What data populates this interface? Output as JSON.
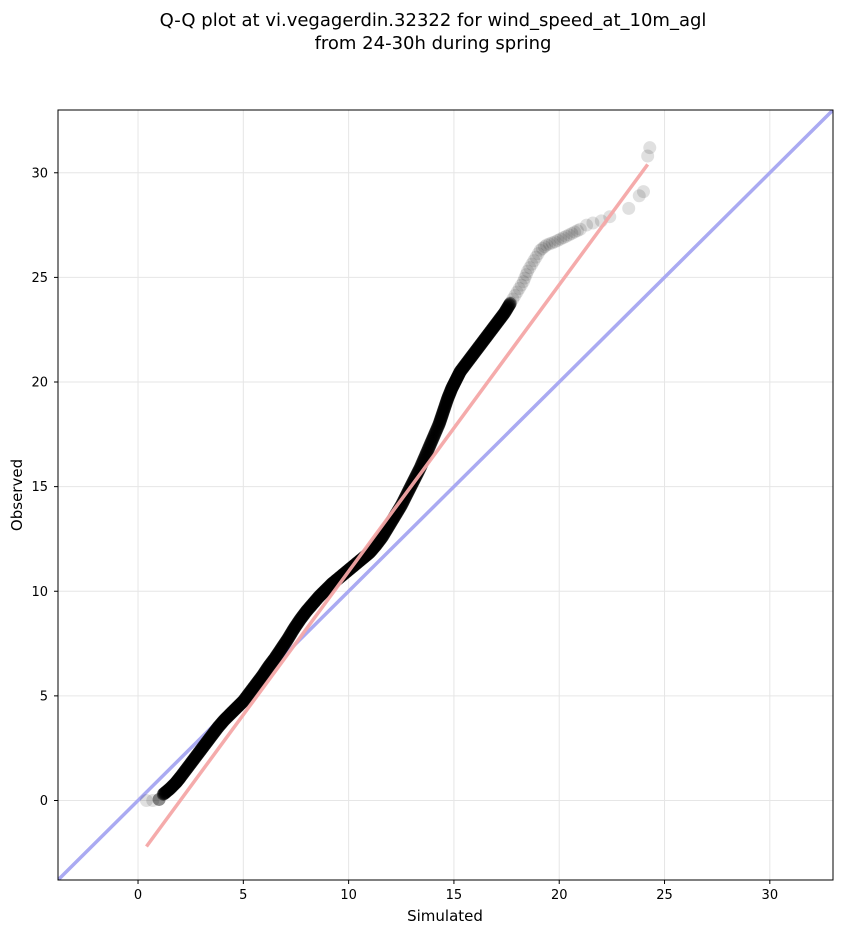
{
  "chart_data": {
    "type": "scatter",
    "title_lines": [
      "Q-Q plot at vi.vegagerdin.32322 for wind_speed_at_10m_agl",
      "from 24-30h during spring"
    ],
    "xlabel": "Simulated",
    "ylabel": "Observed",
    "xlim": [
      -3.8,
      33
    ],
    "ylim": [
      -3.8,
      33
    ],
    "xticks": [
      "0",
      "5",
      "10",
      "15",
      "20",
      "25",
      "30"
    ],
    "yticks": [
      "0",
      "5",
      "10",
      "15",
      "20",
      "25",
      "30"
    ],
    "grid": true,
    "legend": "none",
    "colors": {
      "points": "#000000",
      "identity_line": "#aaaaf2",
      "fit_line": "#f4a7a7",
      "grid": "#e6e6e6"
    },
    "identity_line": {
      "x": [
        -3.8,
        33
      ],
      "y": [
        -3.8,
        33
      ]
    },
    "fit_line": {
      "x": [
        0.4,
        24.2
      ],
      "y": [
        -2.2,
        30.4
      ]
    },
    "series": [
      {
        "x": [
          0.4,
          0.7,
          1.0,
          1.2,
          1.5,
          1.8,
          2.0,
          2.3,
          2.6,
          2.9,
          3.2,
          3.5,
          3.8,
          4.1,
          4.4,
          4.7,
          5.0,
          5.3,
          5.6,
          5.9,
          6.2,
          6.5,
          6.8,
          7.1,
          7.4,
          7.7,
          8.0,
          8.3,
          8.6,
          8.9,
          9.2,
          9.5,
          9.8,
          10.1,
          10.4,
          10.7,
          11.0,
          11.3,
          11.6,
          11.9,
          12.2,
          12.5,
          12.8,
          13.1,
          13.4,
          13.7,
          14.0,
          14.3,
          14.5,
          14.7,
          14.9,
          15.1,
          15.3,
          15.6,
          15.9,
          16.2,
          16.5,
          16.8,
          17.1,
          17.4,
          17.7,
          18.0,
          18.3,
          18.5,
          18.8,
          19.1,
          19.4,
          19.8,
          20.2,
          20.6,
          21.0,
          21.3,
          21.6,
          22.0,
          22.4,
          23.3,
          23.8,
          24.0,
          24.2,
          24.3
        ],
        "y": [
          0.0,
          0.0,
          0.05,
          0.3,
          0.55,
          0.85,
          1.1,
          1.5,
          1.9,
          2.3,
          2.7,
          3.1,
          3.5,
          3.85,
          4.15,
          4.45,
          4.75,
          5.15,
          5.55,
          5.95,
          6.4,
          6.8,
          7.25,
          7.7,
          8.2,
          8.65,
          9.05,
          9.4,
          9.75,
          10.05,
          10.35,
          10.6,
          10.85,
          11.1,
          11.35,
          11.6,
          11.85,
          12.2,
          12.6,
          13.1,
          13.6,
          14.1,
          14.7,
          15.3,
          15.9,
          16.6,
          17.3,
          18.0,
          18.6,
          19.2,
          19.7,
          20.1,
          20.5,
          20.9,
          21.3,
          21.7,
          22.1,
          22.5,
          22.9,
          23.3,
          23.8,
          24.3,
          24.8,
          25.3,
          25.8,
          26.3,
          26.55,
          26.7,
          26.9,
          27.1,
          27.3,
          27.5,
          27.6,
          27.7,
          27.9,
          28.3,
          28.9,
          29.1,
          30.8,
          31.2
        ]
      }
    ]
  }
}
